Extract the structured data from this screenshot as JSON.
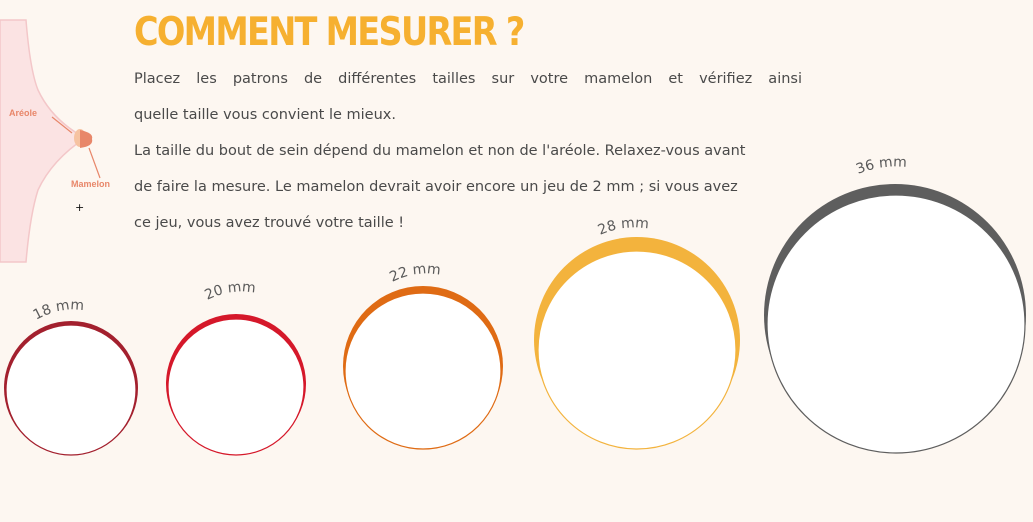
{
  "title": "COMMENT MESURER ?",
  "paragraphs": {
    "p1_line1": "Placez les patrons de différentes tailles sur votre mamelon et vérifiez ainsi",
    "p1_line2": "quelle taille vous convient le mieux.",
    "p2_line1": "La taille du bout de sein dépend du mamelon et non de l'aréole. Relaxez-vous avant",
    "p2_line2": "de faire la mesure. Le mamelon devrait avoir encore un jeu de 2 mm ; si vous avez",
    "p2_line3": "ce jeu, vous avez trouvé votre taille !"
  },
  "anatomy": {
    "areole_label": "Aréole",
    "mamelon_label": "Mamelon"
  },
  "sizes": [
    {
      "label": "18 mm",
      "color": "#a3202e"
    },
    {
      "label": "20 mm",
      "color": "#d5182a"
    },
    {
      "label": "22 mm",
      "color": "#df6b14"
    },
    {
      "label": "28 mm",
      "color": "#f3b33d"
    },
    {
      "label": "36 mm",
      "color": "#5e5e5e"
    }
  ]
}
